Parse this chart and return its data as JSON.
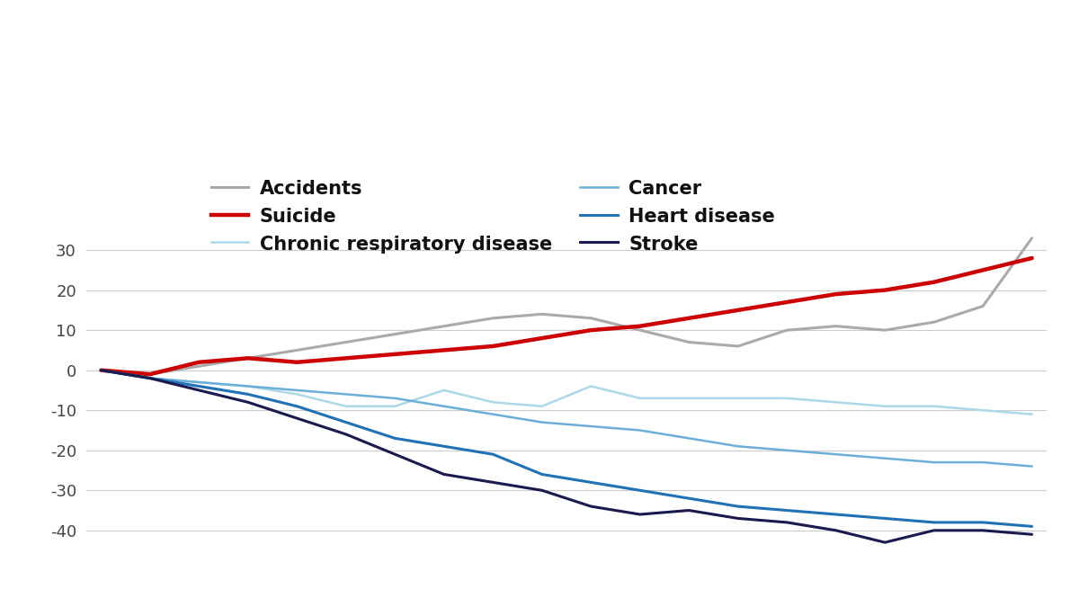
{
  "series": {
    "Accidents": {
      "color": "#aaaaaa",
      "linewidth": 2.2,
      "values": [
        0,
        -1,
        1,
        3,
        5,
        7,
        9,
        11,
        13,
        14,
        13,
        10,
        7,
        6,
        10,
        11,
        10,
        12,
        16,
        33
      ]
    },
    "Suicide": {
      "color": "#cc0000",
      "linewidth": 3.2,
      "values": [
        0,
        -1,
        2,
        3,
        2,
        3,
        4,
        5,
        6,
        8,
        10,
        11,
        13,
        15,
        17,
        19,
        20,
        22,
        25,
        28
      ]
    },
    "Chronic respiratory disease": {
      "color": "#add8e6",
      "linewidth": 1.8,
      "values": [
        0,
        -2,
        -3,
        -4,
        -6,
        -9,
        -9,
        -5,
        -8,
        -9,
        -4,
        -7,
        -7,
        -7,
        -7,
        -8,
        -9,
        -9,
        -10,
        -11
      ]
    },
    "Cancer": {
      "color": "#6baed6",
      "linewidth": 1.8,
      "values": [
        0,
        -2,
        -3,
        -4,
        -5,
        -6,
        -7,
        -9,
        -11,
        -13,
        -14,
        -15,
        -17,
        -19,
        -20,
        -21,
        -22,
        -23,
        -23,
        -24
      ]
    },
    "Heart disease": {
      "color": "#2171b5",
      "linewidth": 2.2,
      "values": [
        0,
        -2,
        -4,
        -6,
        -9,
        -13,
        -17,
        -19,
        -21,
        -26,
        -28,
        -30,
        -32,
        -34,
        -35,
        -36,
        -37,
        -38,
        -38,
        -39
      ]
    },
    "Stroke": {
      "color": "#1a1a4e",
      "linewidth": 2.2,
      "values": [
        0,
        -2,
        -5,
        -8,
        -12,
        -16,
        -21,
        -26,
        -28,
        -30,
        -34,
        -36,
        -35,
        -37,
        -38,
        -40,
        -43,
        -40,
        -40,
        -41
      ]
    }
  },
  "n_points": 20,
  "ylim": [
    -47,
    50
  ],
  "yticks": [
    -40,
    -30,
    -20,
    -10,
    0,
    10,
    20,
    30
  ],
  "background_color": "#ffffff",
  "grid_color": "#cccccc",
  "legend_order": [
    "Accidents",
    "Suicide",
    "Chronic respiratory disease",
    "Cancer",
    "Heart disease",
    "Stroke"
  ],
  "legend_fontsize": 15,
  "tick_fontsize": 13,
  "tick_color": "#444444"
}
